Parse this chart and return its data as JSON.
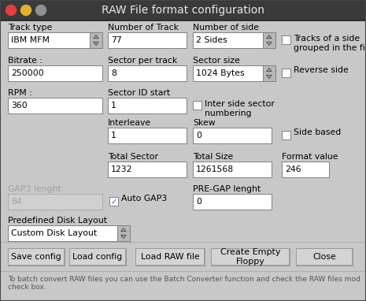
{
  "title": "RAW File format configuration",
  "bg_titlebar": "#3a3a3a",
  "bg_dialog": "#c8c8c8",
  "bg_field": "#ffffff",
  "bg_field_disabled": "#d0d0d0",
  "text_color": "#000000",
  "text_disabled": "#a0a0a0",
  "title_text_color": "#e8e8e8",
  "btn_traffic_red": "#e04040",
  "btn_traffic_yellow": "#e0b030",
  "btn_traffic_grey": "#909090",
  "fields": {
    "track_type": "IBM MFM",
    "num_track": "77",
    "num_side": "2 Sides",
    "bitrate": "250000",
    "sector_per_track": "8",
    "sector_size": "1024 Bytes",
    "rpm": "360",
    "sector_id_start": "1",
    "interleave": "1",
    "skew": "0",
    "total_sector": "1232",
    "total_size": "1261568",
    "format_value": "246",
    "gap3_lenght": "84",
    "pre_gap_lenght": "0",
    "predefined": "Custom Disk Layout"
  },
  "labels": {
    "track_type": "Track type",
    "num_track": "Number of Track",
    "num_side": "Number of side",
    "tracks_grouped": "Tracks of a side\ngrouped in the file",
    "bitrate": "Bitrate :",
    "sector_per_track": "Sector per track",
    "sector_size": "Sector size",
    "reverse_side": "Reverse side",
    "rpm": "RPM :",
    "sector_id_start": "Sector ID start",
    "inter_side": "Inter side sector\nnumbering",
    "interleave": "Interleave",
    "skew": "Skew",
    "side_based": "Side based",
    "total_sector": "Total Sector",
    "total_size": "Total Size",
    "format_value": "Format value",
    "gap3_lenght": "GAP3 lenght",
    "auto_gap3": "Auto GAP3",
    "pre_gap_lenght": "PRE-GAP lenght",
    "predefined": "Predefined Disk Layout"
  },
  "buttons": [
    "Save config",
    "Load config",
    "Load RAW file",
    "Create Empty\nFloppy",
    "Close"
  ],
  "footer": "To batch convert RAW files you can use the Batch Converter function and check the RAW files mod\ncheck box.",
  "auto_gap3_checked": true,
  "tracks_grouped_checked": false,
  "reverse_side_checked": false,
  "inter_side_checked": false,
  "side_based_checked": false
}
